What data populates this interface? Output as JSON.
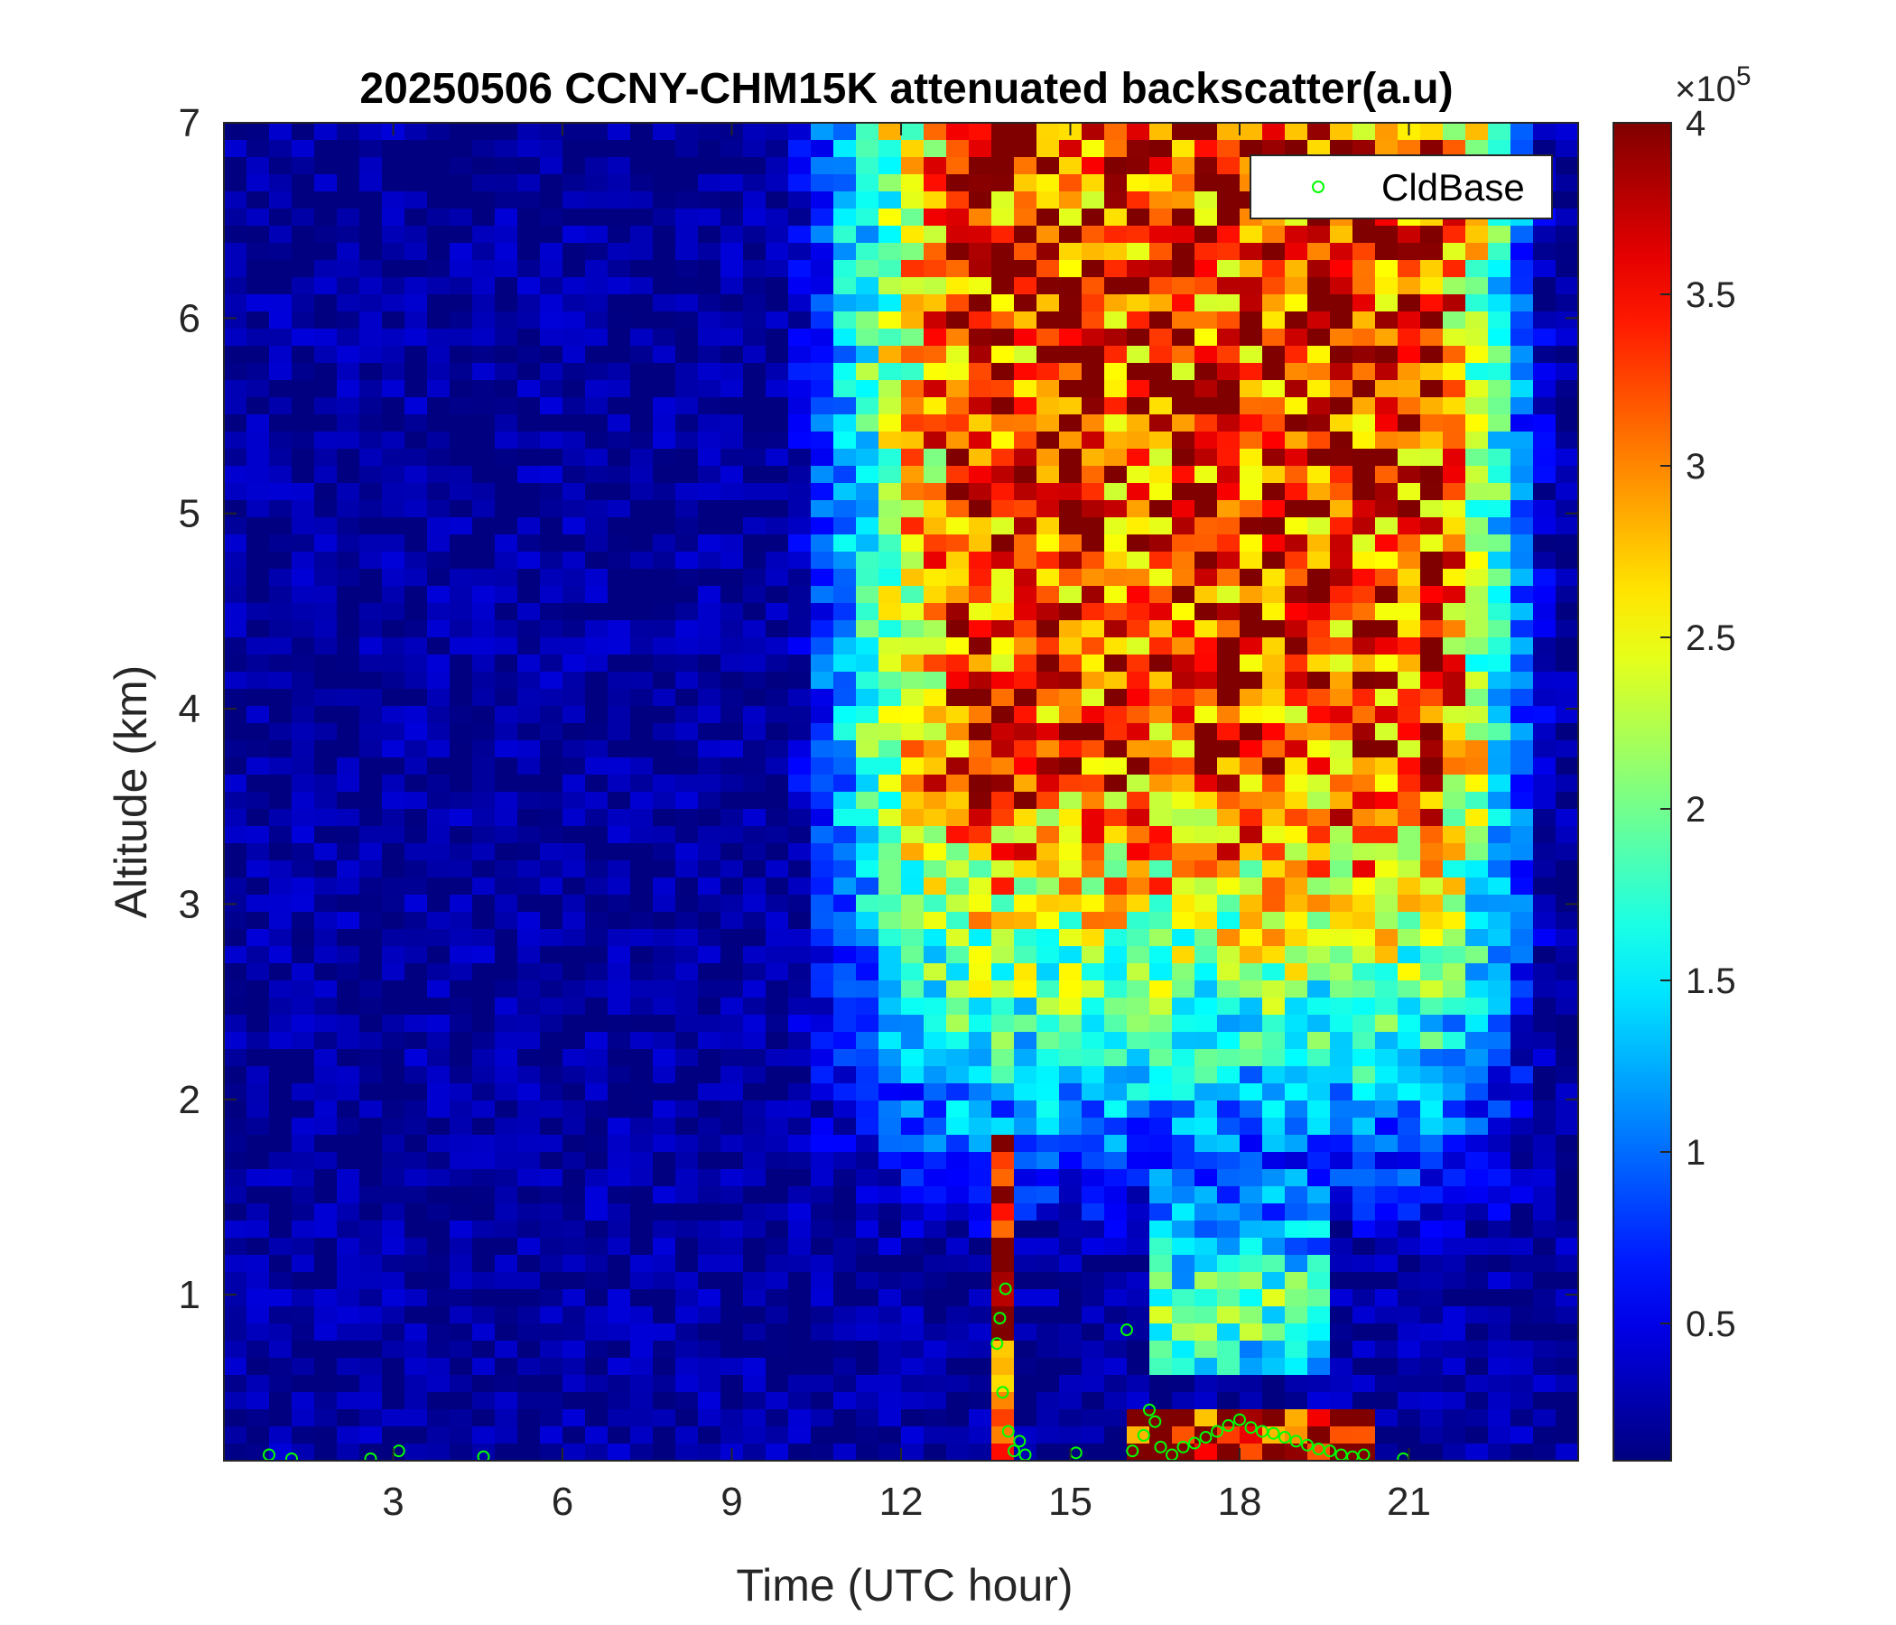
{
  "chart_data": {
    "type": "heatmap",
    "title": "20250506 CCNY-CHM15K attenuated backscatter(a.u)",
    "xlabel": "Time (UTC hour)",
    "ylabel": "Altitude (km)",
    "xlim": [
      0,
      24
    ],
    "ylim": [
      0.15,
      7
    ],
    "xticks": [
      3,
      6,
      9,
      12,
      15,
      18,
      21
    ],
    "xtick_labels": [
      "3",
      "6",
      "9",
      "12",
      "15",
      "18",
      "21"
    ],
    "yticks": [
      1,
      2,
      3,
      4,
      5,
      6,
      7
    ],
    "ytick_labels": [
      "1",
      "2",
      "3",
      "4",
      "5",
      "6",
      "7"
    ],
    "colormap": "jet",
    "colorbar": {
      "clim": [
        0.1,
        4
      ],
      "ticks": [
        0.5,
        1,
        1.5,
        2,
        2.5,
        3,
        3.5,
        4
      ],
      "tick_labels": [
        "0.5",
        "1",
        "1.5",
        "2",
        "2.5",
        "3",
        "3.5",
        "4"
      ],
      "exponent_label": "×10",
      "exponent_power": "5"
    },
    "legend": {
      "placement": "top-right",
      "entries": [
        {
          "name": "CldBase",
          "marker": "circle",
          "color": "#00ff00"
        }
      ]
    },
    "grid": false,
    "regions": [
      {
        "description": "low clear-sky background",
        "x": [
          0,
          10
        ],
        "y": [
          0.15,
          7
        ],
        "level": 0.2
      },
      {
        "description": "elevated noisy signal aloft",
        "x": [
          10,
          24
        ],
        "y": [
          1.5,
          7
        ],
        "level": 3.5
      },
      {
        "description": "aerosol layer",
        "x": [
          16.5,
          19.5
        ],
        "y": [
          0.55,
          1.5
        ],
        "level": 2.3
      },
      {
        "description": "surface layer",
        "x": [
          13.5,
          20.5
        ],
        "y": [
          0.15,
          0.45
        ],
        "level": 4
      }
    ],
    "series": [
      {
        "name": "CldBase",
        "type": "scatter",
        "x": [
          0.8,
          1.2,
          2.6,
          3.1,
          4.6,
          13.7,
          13.75,
          13.8,
          13.85,
          13.9,
          14.0,
          14.1,
          14.2,
          15.1,
          16.0,
          16.1,
          16.3,
          16.4,
          16.5,
          16.6,
          16.8,
          17.0,
          17.2,
          17.4,
          17.6,
          17.8,
          18.0,
          18.2,
          18.4,
          18.6,
          18.8,
          19.0,
          19.2,
          19.4,
          19.6,
          19.8,
          20.0,
          20.2,
          20.9
        ],
        "y": [
          0.18,
          0.16,
          0.16,
          0.2,
          0.17,
          0.75,
          0.88,
          0.5,
          1.03,
          0.3,
          0.2,
          0.25,
          0.18,
          0.19,
          0.82,
          0.2,
          0.28,
          0.41,
          0.35,
          0.22,
          0.18,
          0.22,
          0.24,
          0.27,
          0.3,
          0.33,
          0.36,
          0.32,
          0.3,
          0.29,
          0.27,
          0.25,
          0.23,
          0.21,
          0.2,
          0.18,
          0.17,
          0.18,
          0.16
        ]
      }
    ]
  }
}
